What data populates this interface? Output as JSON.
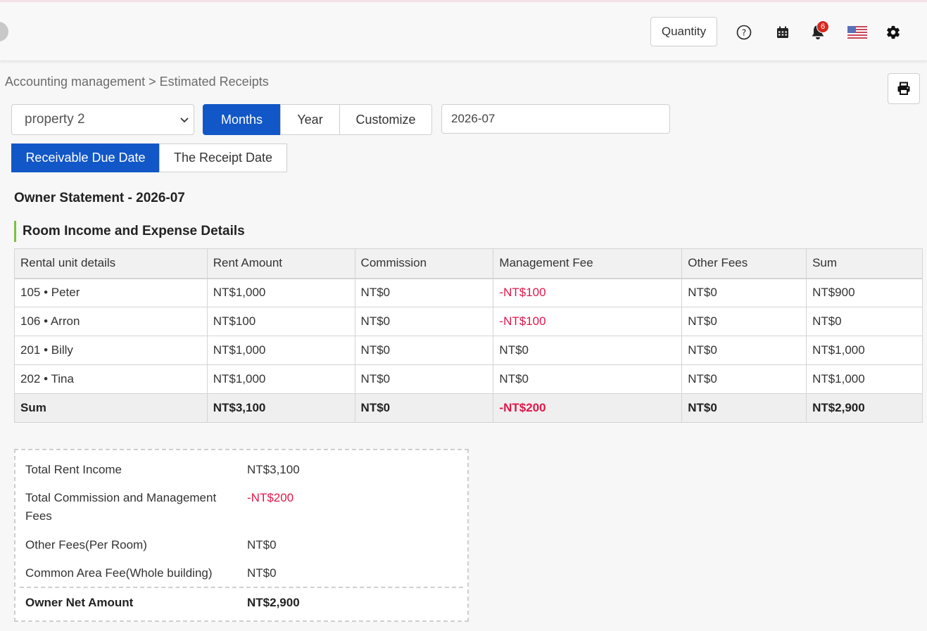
{
  "header": {
    "quantity_label": "Quantity",
    "notification_count": "6",
    "icons": [
      "help-icon",
      "calendar-icon",
      "bell-icon",
      "us-flag-icon",
      "gear-icon"
    ]
  },
  "breadcrumb": {
    "text": "Accounting management > Estimated Receipts"
  },
  "filters": {
    "property_selected": "property 2",
    "period_tabs": [
      "Months",
      "Year",
      "Customize"
    ],
    "period_active": "Months",
    "date_value": "2026-07",
    "date_tabs": [
      "Receivable Due Date",
      "The Receipt Date"
    ],
    "date_active": "Receivable Due Date"
  },
  "statement": {
    "title": "Owner Statement - 2026-07",
    "section_title": "Room Income and Expense Details"
  },
  "table": {
    "columns": [
      "Rental unit details",
      "Rent Amount",
      "Commission",
      "Management Fee",
      "Other Fees",
      "Sum"
    ],
    "rows": [
      [
        "105 • Peter",
        "NT$1,000",
        "NT$0",
        "-NT$100",
        "NT$0",
        "NT$900"
      ],
      [
        "106 • Arron",
        "NT$100",
        "NT$0",
        "-NT$100",
        "NT$0",
        "NT$0"
      ],
      [
        "201 • Billy",
        "NT$1,000",
        "NT$0",
        "NT$0",
        "NT$0",
        "NT$1,000"
      ],
      [
        "202 • Tina",
        "NT$1,000",
        "NT$0",
        "NT$0",
        "NT$0",
        "NT$1,000"
      ]
    ],
    "sum_row": [
      "Sum",
      "NT$3,100",
      "NT$0",
      "-NT$200",
      "NT$0",
      "NT$2,900"
    ]
  },
  "summary": {
    "total_rent_label": "Total Rent Income",
    "total_rent_value": "NT$3,100",
    "commission_label_1": "Total Commission and Management",
    "commission_label_2": "Fees",
    "commission_value": "-NT$200",
    "other_fees_label": "Other Fees(Per Room)",
    "other_fees_value": "NT$0",
    "common_area_label": "Common Area Fee(Whole building)",
    "common_area_value": "NT$0",
    "net_label": "Owner Net Amount",
    "net_value": "NT$2,900"
  },
  "colors": {
    "primary": "#1257c7",
    "negative": "#e0174a",
    "section_accent": "#7bc143",
    "badge": "#d6281f"
  }
}
